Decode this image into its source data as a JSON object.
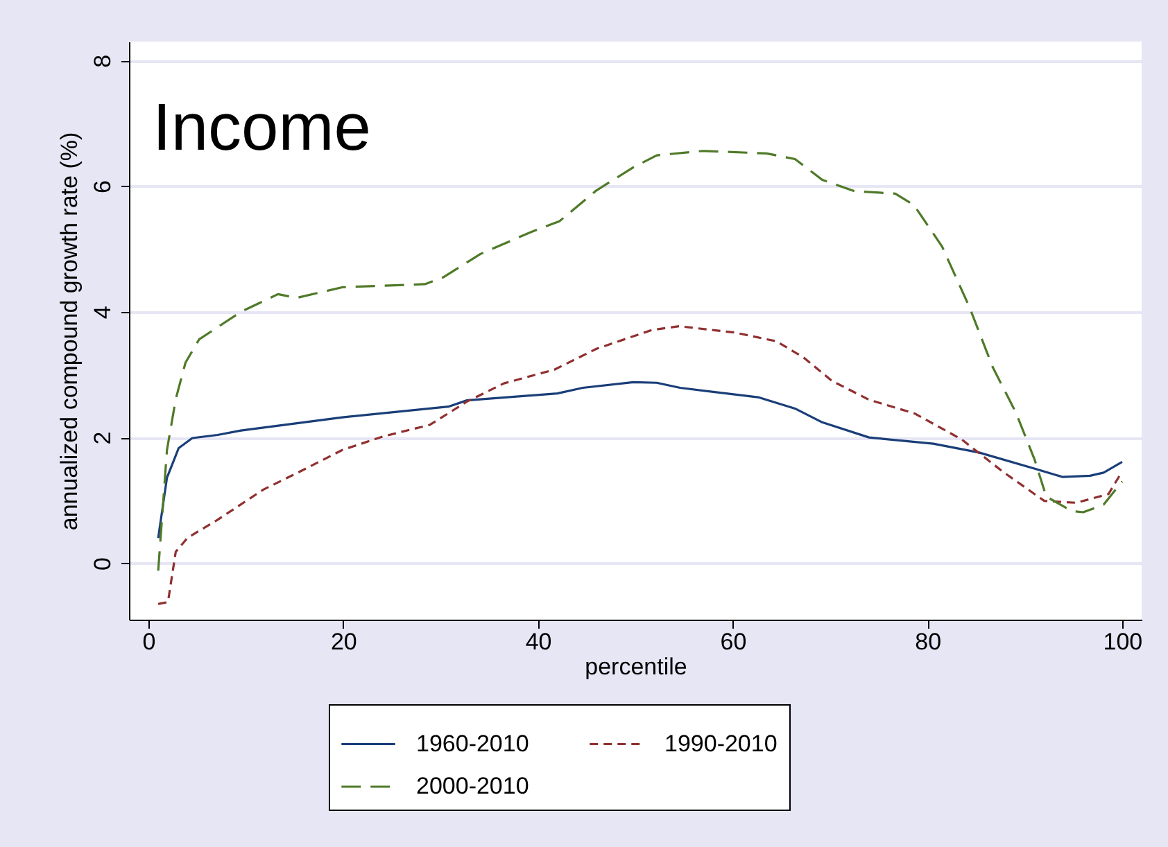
{
  "chart_data": {
    "type": "line",
    "annotations": [
      "Income"
    ],
    "xlabel": "percentile",
    "ylabel": "annualized compound growth rate (%)",
    "xlim": [
      -2,
      102
    ],
    "ylim": [
      -0.9,
      8.3
    ],
    "xticks": [
      0,
      20,
      40,
      60,
      80,
      100
    ],
    "yticks": [
      0,
      2,
      4,
      6,
      8
    ],
    "grid": "y",
    "legend": "bottom",
    "marker": "none",
    "series": [
      {
        "name": "1960-2010",
        "color": "#1a3e78",
        "line_style": "solid",
        "x": [
          1,
          1.9,
          3.1,
          4.5,
          7.1,
          9.5,
          19.9,
          30.8,
          32.7,
          42,
          44.6,
          49.8,
          52.2,
          54.6,
          62.6,
          66.4,
          69.2,
          74,
          80.6,
          85.3,
          91.1,
          93.9,
          96.7,
          98.1,
          100
        ],
        "values": [
          0.4,
          1.36,
          1.83,
          1.99,
          2.04,
          2.11,
          2.32,
          2.49,
          2.59,
          2.7,
          2.79,
          2.88,
          2.87,
          2.79,
          2.64,
          2.46,
          2.24,
          2.0,
          1.9,
          1.76,
          1.5,
          1.37,
          1.39,
          1.44,
          1.61
        ]
      },
      {
        "name": "1990-2010",
        "color": "#903030",
        "line_style": "dashed",
        "x": [
          1,
          2,
          2.8,
          4,
          7.1,
          11.8,
          15.6,
          19.9,
          24.2,
          28.9,
          32.7,
          36.5,
          41.7,
          46,
          51.7,
          54.5,
          60.2,
          64.5,
          67.3,
          70.2,
          74,
          78.7,
          83.5,
          87.7,
          92,
          95.3,
          98.6,
          100
        ],
        "values": [
          -0.65,
          -0.62,
          0.18,
          0.4,
          0.69,
          1.17,
          1.46,
          1.8,
          2.02,
          2.2,
          2.57,
          2.86,
          3.08,
          3.41,
          3.71,
          3.77,
          3.67,
          3.53,
          3.27,
          2.9,
          2.6,
          2.38,
          1.97,
          1.46,
          0.99,
          0.96,
          1.1,
          1.46
        ]
      },
      {
        "name": "2000-2010",
        "color": "#4f7a28",
        "line_style": "dashed",
        "x": [
          1,
          1.9,
          2.8,
          3.8,
          5.2,
          9.5,
          13.3,
          15.2,
          19.9,
          28.4,
          30.3,
          34.1,
          39.3,
          42.2,
          46,
          49.8,
          52.2,
          56.9,
          63.5,
          66.4,
          69.2,
          72.5,
          76.7,
          78.6,
          81.5,
          84.3,
          86.7,
          89.1,
          91,
          92.2,
          94.8,
          96,
          98.1,
          100
        ],
        "values": [
          -0.12,
          1.8,
          2.61,
          3.19,
          3.56,
          4.0,
          4.28,
          4.22,
          4.39,
          4.44,
          4.55,
          4.92,
          5.27,
          5.44,
          5.93,
          6.3,
          6.49,
          6.56,
          6.52,
          6.43,
          6.1,
          5.92,
          5.88,
          5.7,
          5.04,
          4.08,
          3.12,
          2.39,
          1.65,
          1.06,
          0.83,
          0.81,
          0.93,
          1.3
        ]
      }
    ]
  }
}
